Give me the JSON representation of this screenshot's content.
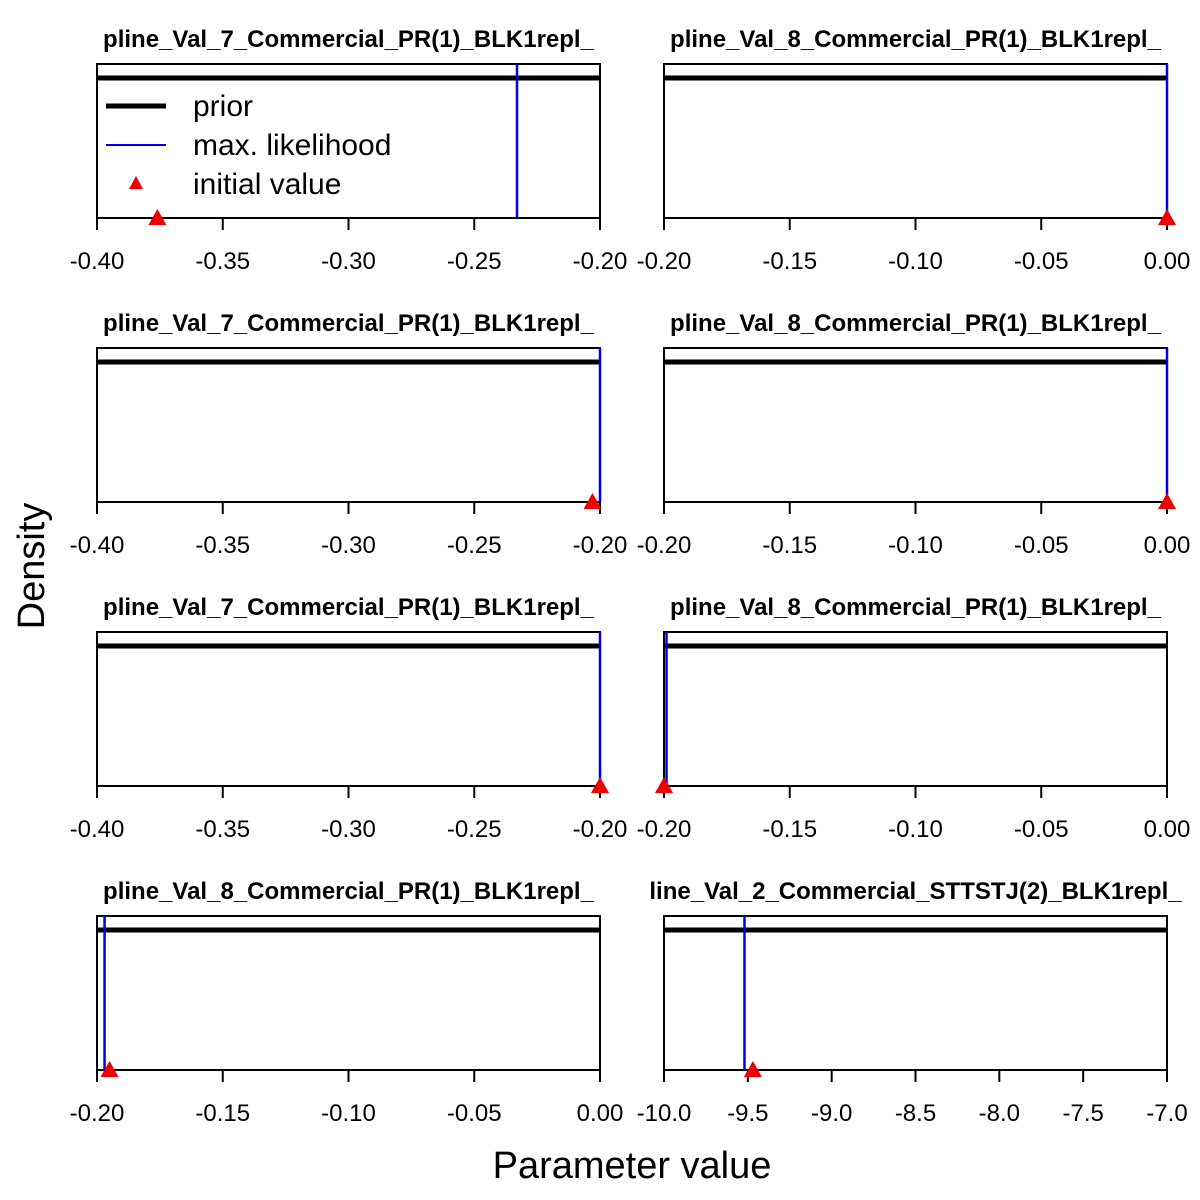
{
  "figure": {
    "xlabel": "Parameter value",
    "ylabel": "Density"
  },
  "legend": {
    "placement": "top-left of first panel",
    "items": [
      {
        "label": "prior",
        "style": "thick-line",
        "color": "#000000"
      },
      {
        "label": "max. likelihood",
        "style": "thin-line",
        "color": "#0000ee"
      },
      {
        "label": "initial value",
        "style": "triangle",
        "color": "#ee0000"
      }
    ]
  },
  "colors": {
    "prior": "#000000",
    "max_likelihood": "#0000ee",
    "initial_value": "#ee0000"
  },
  "chart_data": [
    {
      "type": "line",
      "title": "pline_Val_7_Commercial_PR(1)_BLK1repl_",
      "xlim": [
        -0.4,
        -0.2
      ],
      "ticks": [
        "-0.40",
        "-0.35",
        "-0.30",
        "-0.25",
        "-0.20"
      ],
      "tick_values": [
        -0.4,
        -0.35,
        -0.3,
        -0.25,
        -0.2
      ],
      "prior": "uniform",
      "max_likelihood": -0.233,
      "initial_value": -0.376,
      "show_legend": true
    },
    {
      "type": "line",
      "title": "pline_Val_8_Commercial_PR(1)_BLK1repl_",
      "xlim": [
        -0.2,
        0.0
      ],
      "ticks": [
        "-0.20",
        "-0.15",
        "-0.10",
        "-0.05",
        "0.00"
      ],
      "tick_values": [
        -0.2,
        -0.15,
        -0.1,
        -0.05,
        0.0
      ],
      "prior": "uniform",
      "max_likelihood": 0.0,
      "initial_value": 0.0
    },
    {
      "type": "line",
      "title": "pline_Val_7_Commercial_PR(1)_BLK1repl_",
      "xlim": [
        -0.4,
        -0.2
      ],
      "ticks": [
        "-0.40",
        "-0.35",
        "-0.30",
        "-0.25",
        "-0.20"
      ],
      "tick_values": [
        -0.4,
        -0.35,
        -0.3,
        -0.25,
        -0.2
      ],
      "prior": "uniform",
      "max_likelihood": -0.2,
      "initial_value": -0.203
    },
    {
      "type": "line",
      "title": "pline_Val_8_Commercial_PR(1)_BLK1repl_",
      "xlim": [
        -0.2,
        0.0
      ],
      "ticks": [
        "-0.20",
        "-0.15",
        "-0.10",
        "-0.05",
        "0.00"
      ],
      "tick_values": [
        -0.2,
        -0.15,
        -0.1,
        -0.05,
        0.0
      ],
      "prior": "uniform",
      "max_likelihood": 0.0,
      "initial_value": 0.0
    },
    {
      "type": "line",
      "title": "pline_Val_7_Commercial_PR(1)_BLK1repl_",
      "xlim": [
        -0.4,
        -0.2
      ],
      "ticks": [
        "-0.40",
        "-0.35",
        "-0.30",
        "-0.25",
        "-0.20"
      ],
      "tick_values": [
        -0.4,
        -0.35,
        -0.3,
        -0.25,
        -0.2
      ],
      "prior": "uniform",
      "max_likelihood": -0.2,
      "initial_value": -0.2
    },
    {
      "type": "line",
      "title": "pline_Val_8_Commercial_PR(1)_BLK1repl_",
      "xlim": [
        -0.2,
        0.0
      ],
      "ticks": [
        "-0.20",
        "-0.15",
        "-0.10",
        "-0.05",
        "0.00"
      ],
      "tick_values": [
        -0.2,
        -0.15,
        -0.1,
        -0.05,
        0.0
      ],
      "prior": "uniform",
      "max_likelihood": -0.199,
      "initial_value": -0.2
    },
    {
      "type": "line",
      "title": "pline_Val_8_Commercial_PR(1)_BLK1repl_",
      "xlim": [
        -0.2,
        0.0
      ],
      "ticks": [
        "-0.20",
        "-0.15",
        "-0.10",
        "-0.05",
        "0.00"
      ],
      "tick_values": [
        -0.2,
        -0.15,
        -0.1,
        -0.05,
        0.0
      ],
      "prior": "uniform",
      "max_likelihood": -0.197,
      "initial_value": -0.195
    },
    {
      "type": "line",
      "title": "line_Val_2_Commercial_STTSTJ(2)_BLK1repl_",
      "xlim": [
        -10.0,
        -7.0
      ],
      "ticks": [
        "-10.0",
        "-9.5",
        "-9.0",
        "-8.5",
        "-8.0",
        "-7.5",
        "-7.0"
      ],
      "tick_values": [
        -10.0,
        -9.5,
        -9.0,
        -8.5,
        -8.0,
        -7.5,
        -7.0
      ],
      "prior": "uniform",
      "max_likelihood": -9.52,
      "initial_value": -9.47
    }
  ]
}
